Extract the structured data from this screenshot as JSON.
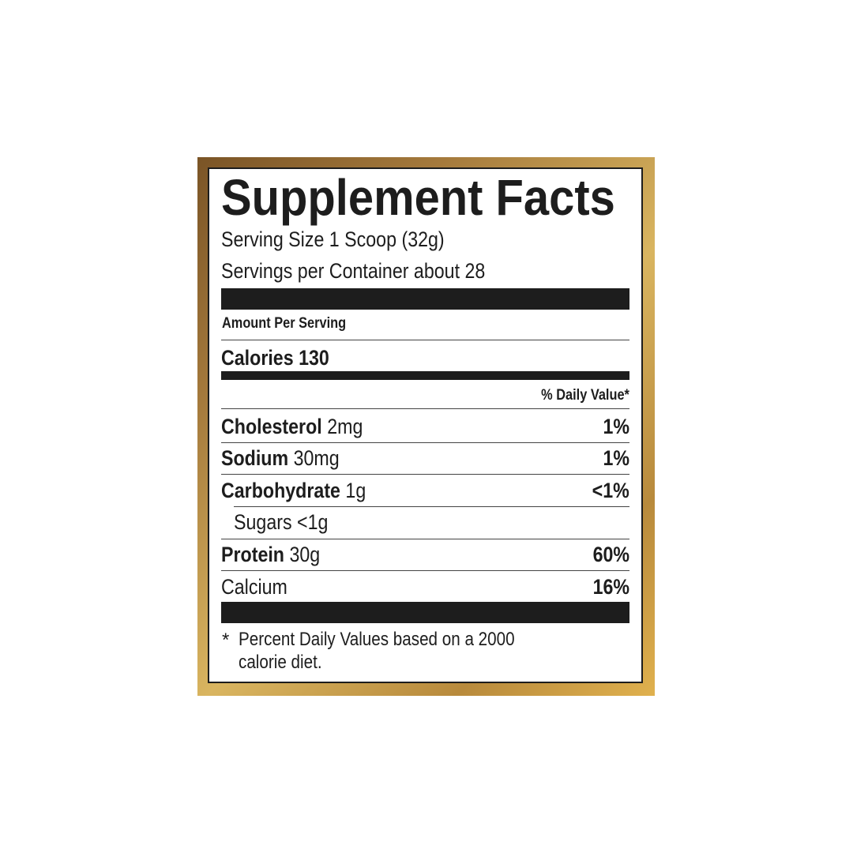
{
  "title": "Supplement Facts",
  "serving_size": "Serving Size 1 Scoop (32g)",
  "servings_per_container": "Servings per Container about 28",
  "amount_per_serving": "Amount Per Serving",
  "calories": {
    "label": "Calories",
    "value": "130"
  },
  "daily_value_header": "% Daily Value*",
  "nutrients": [
    {
      "name": "Cholesterol",
      "amount": "2mg",
      "dv": "1%"
    },
    {
      "name": "Sodium",
      "amount": "30mg",
      "dv": "1%"
    },
    {
      "name": "Carbohydrate",
      "amount": "1g",
      "dv": "<1%"
    },
    {
      "name": "Sugars",
      "amount": "<1g",
      "dv": ""
    },
    {
      "name": "Protein",
      "amount": "30g",
      "dv": "60%"
    },
    {
      "name": "Calcium",
      "amount": "",
      "dv": "16%"
    }
  ],
  "footnote": {
    "star": "*",
    "line1": "Percent Daily Values based on a 2000",
    "line2": "calorie diet."
  },
  "colors": {
    "frame_gold": "#c9a04a",
    "ink": "#1d1d1d"
  }
}
